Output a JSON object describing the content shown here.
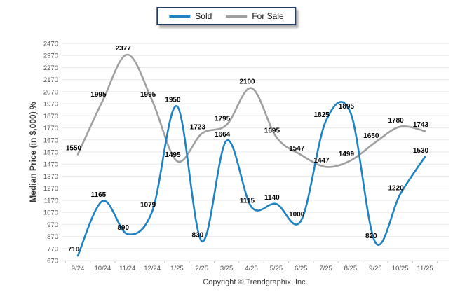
{
  "legend": {
    "position": "top-center"
  },
  "footer": {
    "copyright": "Copyright © Trendgraphix, Inc."
  },
  "chart_data": {
    "type": "line",
    "title": "",
    "xlabel": "",
    "ylabel": "Median Price (in $,000) %",
    "categories": [
      "9/24",
      "10/24",
      "11/24",
      "12/24",
      "1/25",
      "2/25",
      "3/25",
      "4/25",
      "5/25",
      "6/25",
      "7/25",
      "8/25",
      "9/25",
      "10/25",
      "11/25"
    ],
    "series": [
      {
        "name": "Sold",
        "color": "#1e82c3",
        "values": [
          710,
          1165,
          890,
          1079,
          1950,
          830,
          1664,
          1115,
          1140,
          1000,
          1825,
          1895,
          820,
          1220,
          1530
        ]
      },
      {
        "name": "For Sale",
        "color": "#a0a0a0",
        "values": [
          1550,
          1995,
          2377,
          1995,
          1495,
          1723,
          1795,
          2100,
          1695,
          1547,
          1447,
          1499,
          1650,
          1780,
          1743
        ]
      }
    ],
    "ylim": [
      670,
      2470
    ],
    "ytick_step": 100,
    "grid": true,
    "smooth": true,
    "data_labels": true,
    "legend_position": "top-center",
    "colors": {
      "gridline": "#e7e7e7",
      "axis_line": "#c2c2c2",
      "tick_text": "#4f4f4f",
      "data_label_text": "#000000",
      "axis_title_text": "#3a3a3a",
      "legend_border": "#1f3c67"
    }
  }
}
